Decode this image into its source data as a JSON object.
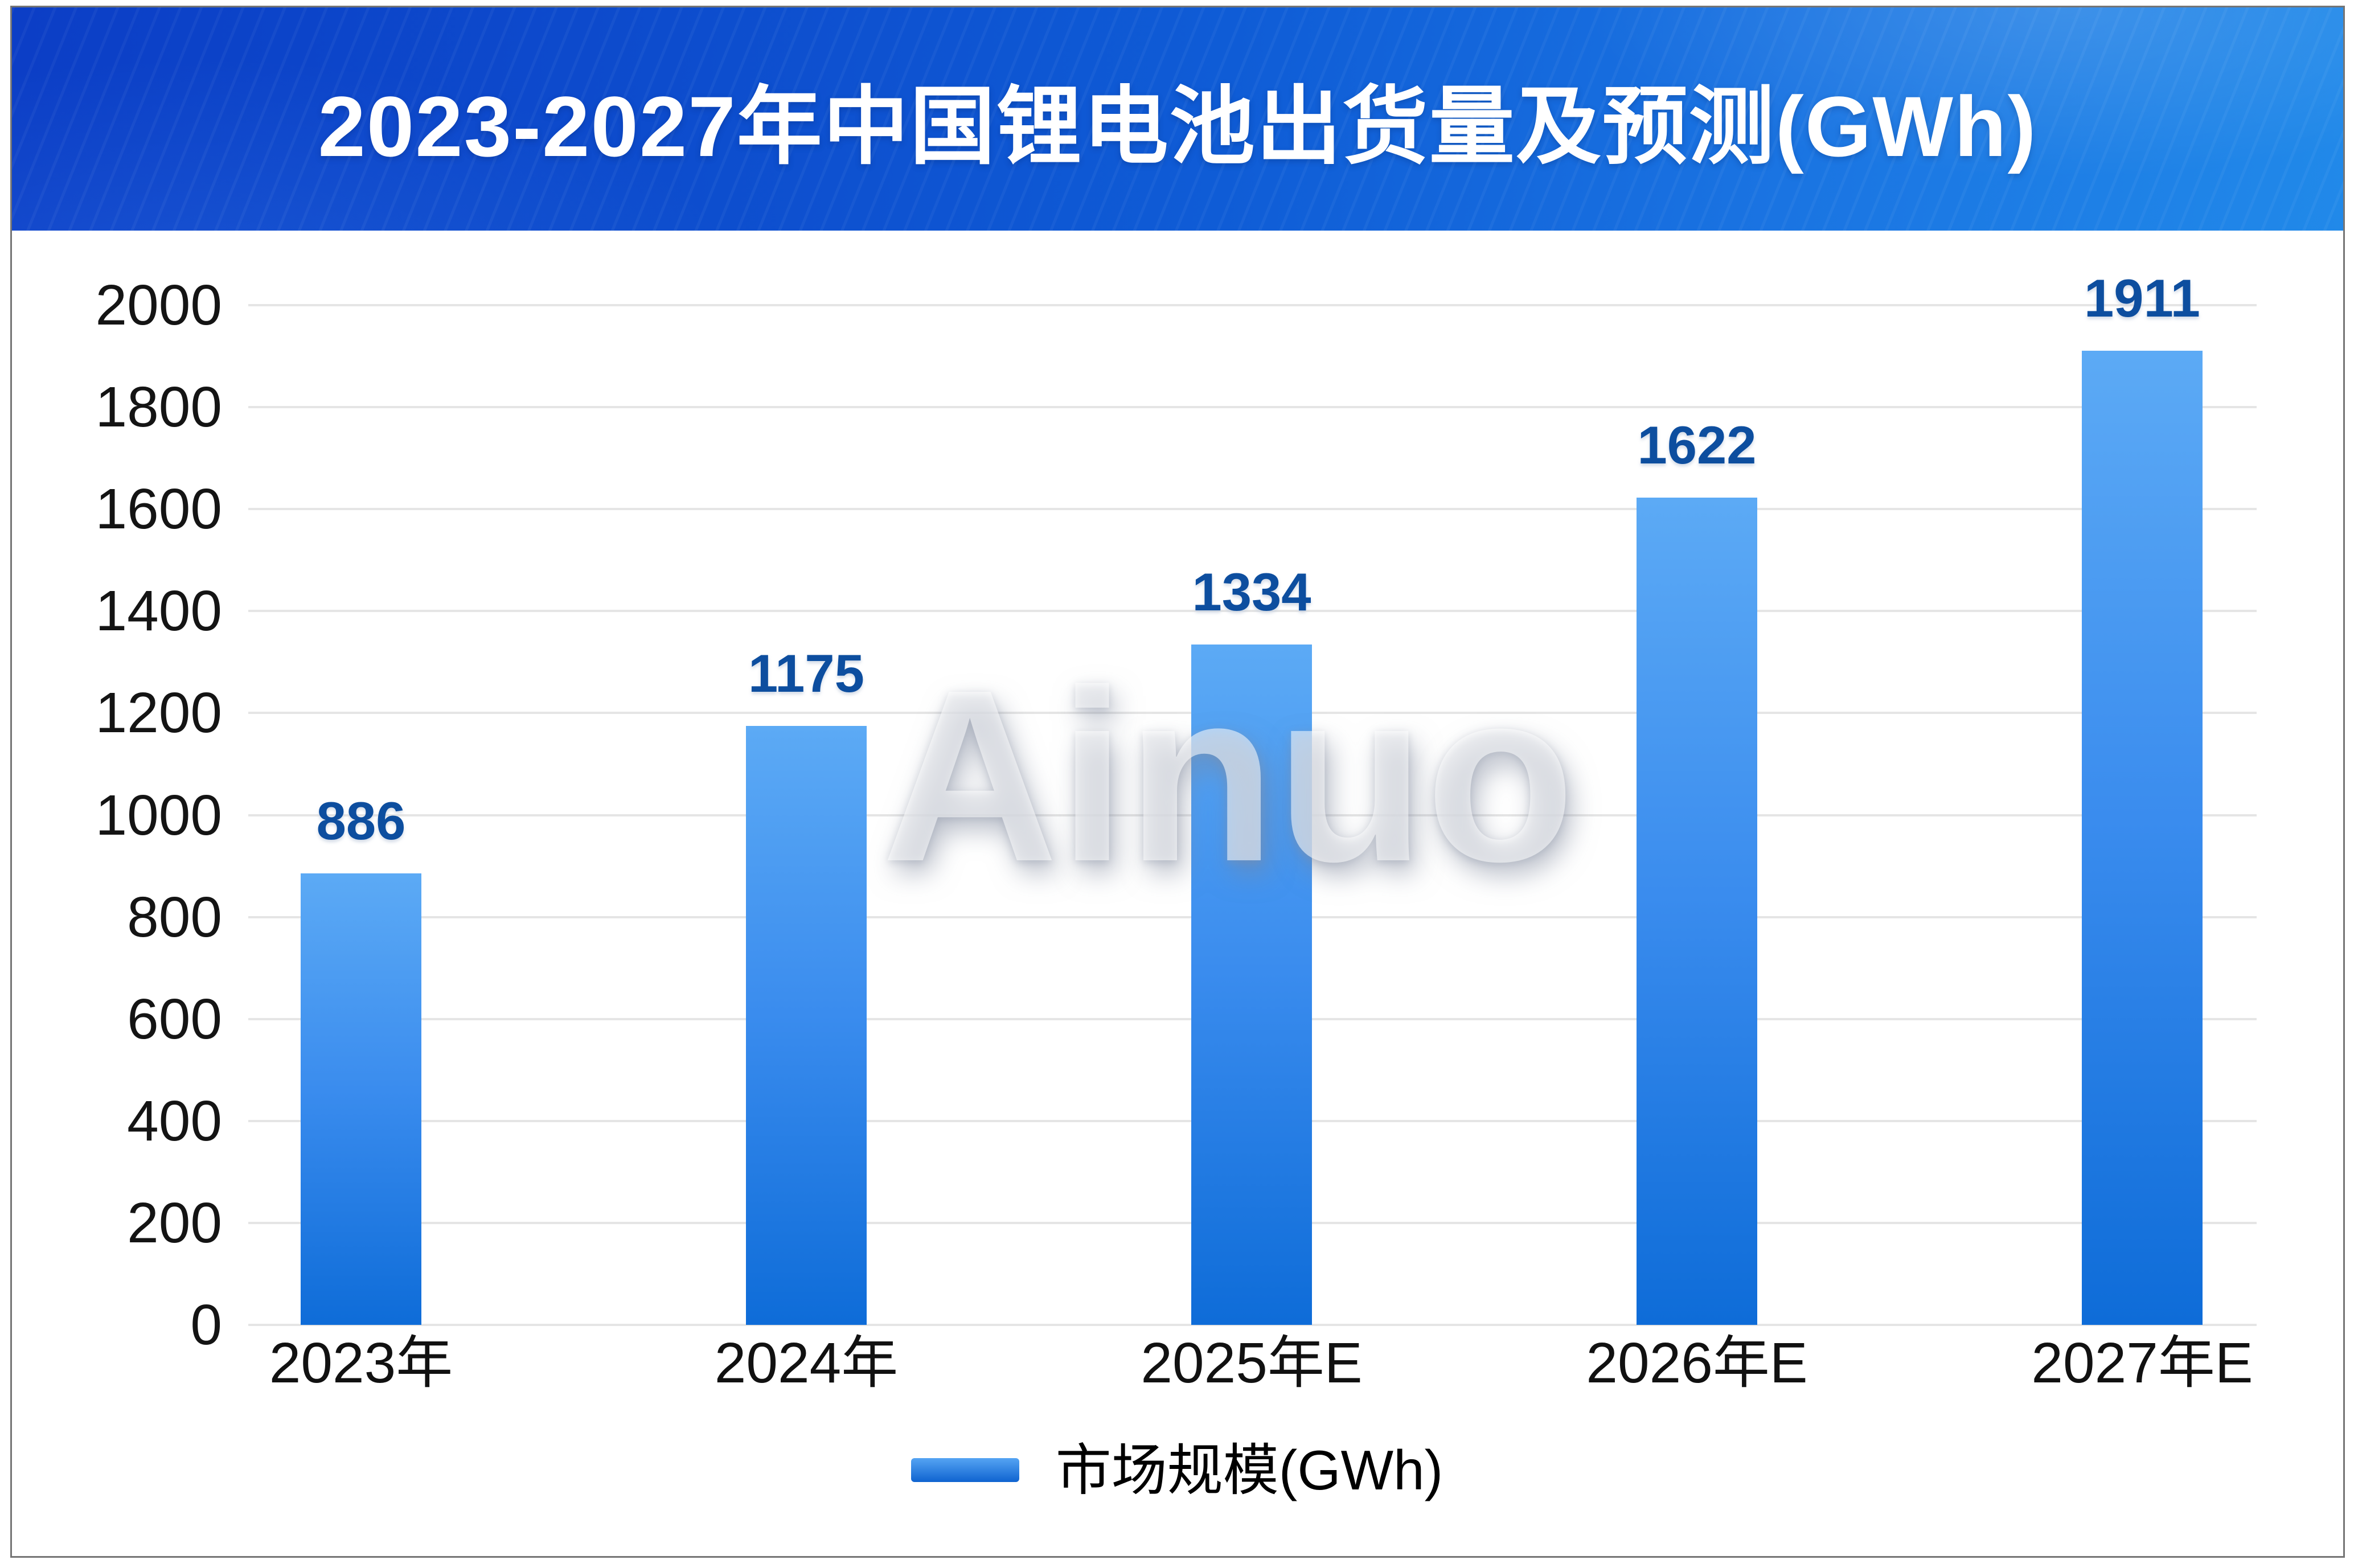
{
  "header": {
    "title": "2023-2027年中国锂电池出货量及预测(GWh)"
  },
  "watermark": "Ainuo",
  "legend": {
    "label": "市场规模(GWh)"
  },
  "chart_data": {
    "type": "bar",
    "title": "2023-2027年中国锂电池出货量及预测(GWh)",
    "categories": [
      "2023年",
      "2024年",
      "2025年E",
      "2026年E",
      "2027年E"
    ],
    "values": [
      886,
      1175,
      1334,
      1622,
      1911
    ],
    "series": [
      {
        "name": "市场规模(GWh)",
        "values": [
          886,
          1175,
          1334,
          1622,
          1911
        ]
      }
    ],
    "xlabel": "",
    "ylabel": "",
    "unit": "GWh",
    "ylim": [
      0,
      2000
    ],
    "ytick_step": 200,
    "yticks": [
      0,
      200,
      400,
      600,
      800,
      1000,
      1200,
      1400,
      1600,
      1800,
      2000
    ],
    "grid": true,
    "value_labels": true,
    "legend_position": "bottom"
  },
  "colors": {
    "header_gradient_left": "#0c3ec6",
    "header_gradient_mid": "#0f5cd6",
    "header_gradient_right": "#2189e9",
    "title_text": "#ffffff",
    "bar_gradient_top": "#5caaf5",
    "bar_gradient_bottom": "#0e6cd8",
    "value_label": "#0d4e9f",
    "axis_label": "#141414",
    "gridline": "#e5e5e5",
    "card_border": "#757575",
    "legend_text": "#000000",
    "watermark": "#f0f1f4"
  }
}
